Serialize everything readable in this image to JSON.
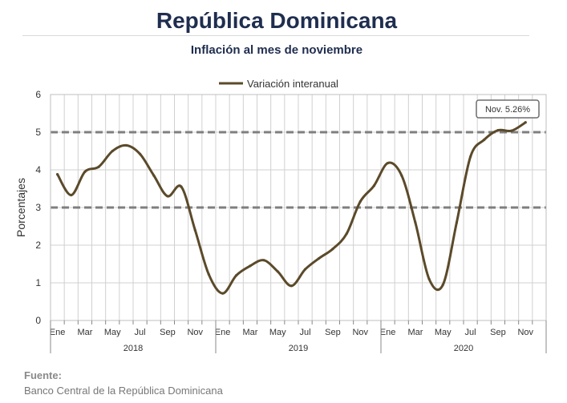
{
  "header": {
    "title": "República Dominicana",
    "subtitle": "Inflación al mes de noviembre"
  },
  "source": {
    "label": "Fuente:",
    "text": "Banco Central de la República Dominicana"
  },
  "colors": {
    "title": "#1f2d4f",
    "line": "#5b4a2a",
    "band": "#7f7f7f",
    "grid": "#d0d0d0"
  },
  "chart_data": {
    "type": "line",
    "title": "",
    "xlabel": "",
    "ylabel": "Porcentajes",
    "ylim": [
      0,
      6
    ],
    "yticks": [
      0,
      1,
      2,
      3,
      4,
      5,
      6
    ],
    "grid": true,
    "legend": {
      "position": "top",
      "entries": [
        "Variación interanual"
      ]
    },
    "x": [
      "2018-01",
      "2018-02",
      "2018-03",
      "2018-04",
      "2018-05",
      "2018-06",
      "2018-07",
      "2018-08",
      "2018-09",
      "2018-10",
      "2018-11",
      "2018-12",
      "2019-01",
      "2019-02",
      "2019-03",
      "2019-04",
      "2019-05",
      "2019-06",
      "2019-07",
      "2019-08",
      "2019-09",
      "2019-10",
      "2019-11",
      "2019-12",
      "2020-01",
      "2020-02",
      "2020-03",
      "2020-04",
      "2020-05",
      "2020-06",
      "2020-07",
      "2020-08",
      "2020-09",
      "2020-10",
      "2020-11"
    ],
    "month_tick_labels": [
      "Ene",
      "",
      "Mar",
      "",
      "May",
      "",
      "Jul",
      "",
      "Sep",
      "",
      "Nov",
      "",
      "Ene",
      "",
      "Mar",
      "",
      "May",
      "",
      "Jul",
      "",
      "Sep",
      "",
      "Nov",
      "",
      "Ene",
      "",
      "Mar",
      "",
      "May",
      "",
      "Jul",
      "",
      "Sep",
      "",
      "Nov"
    ],
    "year_labels": [
      "2018",
      "2019",
      "2020"
    ],
    "series": [
      {
        "name": "Variación interanual",
        "values": [
          3.88,
          3.33,
          3.95,
          4.08,
          4.5,
          4.65,
          4.42,
          3.85,
          3.3,
          3.55,
          2.4,
          1.22,
          0.72,
          1.2,
          1.45,
          1.6,
          1.3,
          0.92,
          1.36,
          1.65,
          1.9,
          2.3,
          3.16,
          3.58,
          4.18,
          3.85,
          2.6,
          1.1,
          0.95,
          2.6,
          4.35,
          4.8,
          5.05,
          5.04,
          5.26
        ]
      }
    ],
    "reference_lines": [
      3,
      5
    ],
    "annotations": [
      {
        "x": "2020-11",
        "text": "Nov. 5.26%"
      }
    ]
  }
}
